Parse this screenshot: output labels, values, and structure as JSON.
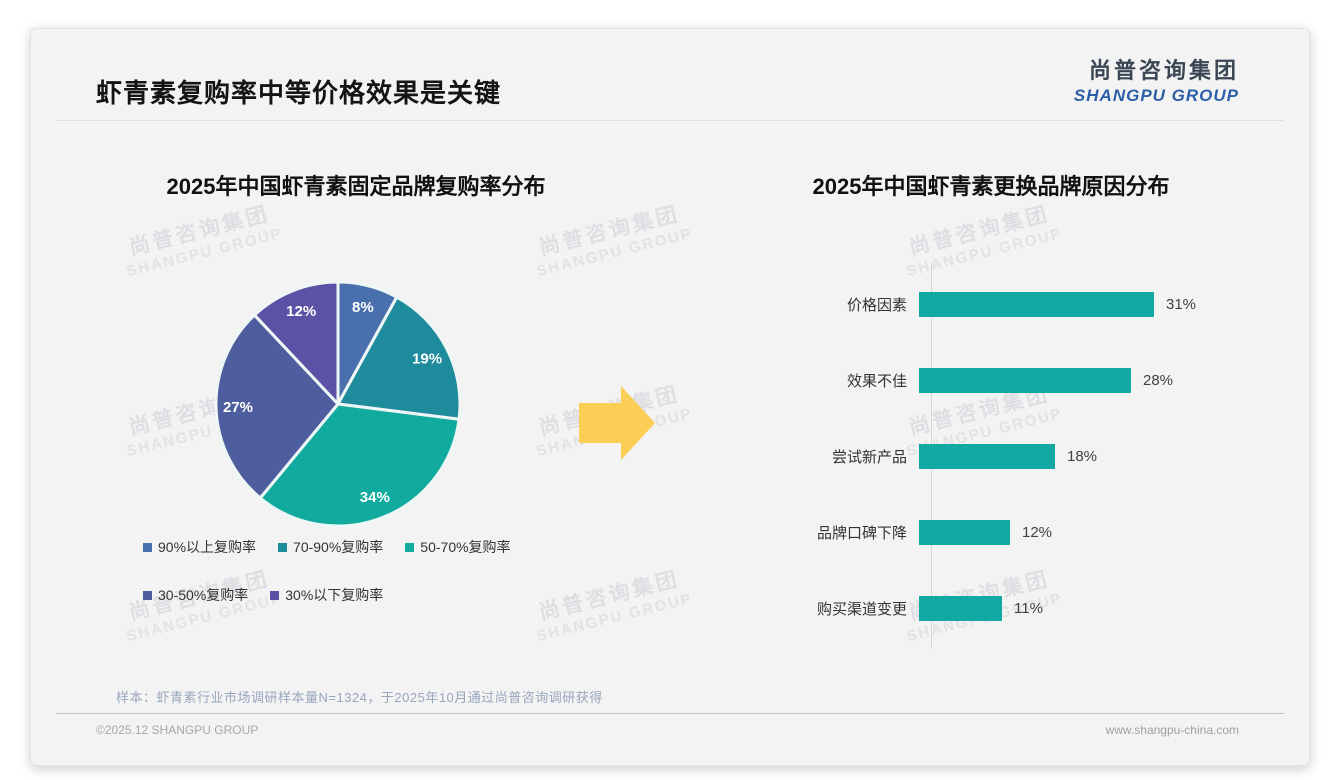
{
  "page": {
    "title": "虾青素复购率中等价格效果是关键",
    "logo": {
      "cn": "尚普咨询集团",
      "en": "SHANGPU GROUP"
    },
    "watermark": {
      "cn": "尚普咨询集团",
      "en": "SHANGPU GROUP"
    },
    "sample_note": "样本：虾青素行业市场调研样本量N=1324，于2025年10月通过尚普咨询调研获得",
    "footer": {
      "copyright": "©2025.12 SHANGPU GROUP",
      "website": "www.shangpu-china.com"
    }
  },
  "colors": {
    "card_background": "#f3f3f4",
    "arrow_yellow": "#fbce55",
    "bar_teal": "#11a9a1",
    "logo_cn": "#3b4654",
    "logo_en": "#2d5fa7"
  },
  "chart_data": [
    {
      "type": "pie",
      "title": "2025年中国虾青素固定品牌复购率分布",
      "labels": [
        "90%以上复购率",
        "70-90%复购率",
        "50-70%复购率",
        "30-50%复购率",
        "30%以下复购率"
      ],
      "values": [
        8,
        19,
        34,
        27,
        12
      ],
      "data_labels": [
        "8%",
        "19%",
        "34%",
        "27%",
        "12%"
      ],
      "slice_colors": [
        "#4a6fad",
        "#1f8c9e",
        "#10ab9e",
        "#4d5d9e",
        "#5c52a5"
      ],
      "start_angle_deg": 0,
      "direction": "clockwise",
      "legend_position": "bottom",
      "legend_rows": [
        [
          0,
          1,
          2
        ],
        [
          3,
          4
        ]
      ]
    },
    {
      "type": "bar",
      "title": "2025年中国虾青素更换品牌原因分布",
      "orientation": "horizontal",
      "categories": [
        "价格因素",
        "效果不佳",
        "尝试新产品",
        "品牌口碑下降",
        "购买渠道变更"
      ],
      "values": [
        31,
        28,
        18,
        12,
        11
      ],
      "data_labels": [
        "31%",
        "28%",
        "18%",
        "12%",
        "11%"
      ],
      "bar_color": "#11a9a1",
      "xlim": [
        0,
        33
      ],
      "grid": false,
      "axis_line": true
    }
  ]
}
